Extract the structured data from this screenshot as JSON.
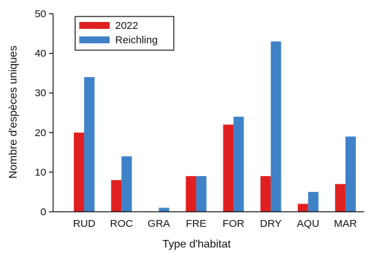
{
  "chart_data": {
    "type": "bar",
    "xlabel": "Type d'habitat",
    "ylabel": "Nombre d'espèces uniques",
    "ylim": [
      0,
      50
    ],
    "yticks": [
      0,
      10,
      20,
      30,
      40,
      50
    ],
    "grid": false,
    "legend_position": "top-left",
    "categories": [
      "RUD",
      "ROC",
      "GRA",
      "FRE",
      "FOR",
      "DRY",
      "AQU",
      "MAR"
    ],
    "series": [
      {
        "name": "2022",
        "color": "#e02020",
        "values": [
          20,
          8,
          0,
          9,
          22,
          9,
          2,
          7
        ]
      },
      {
        "name": "Reichling",
        "color": "#3f82c8",
        "values": [
          34,
          14,
          1,
          9,
          24,
          43,
          5,
          19
        ]
      }
    ]
  }
}
